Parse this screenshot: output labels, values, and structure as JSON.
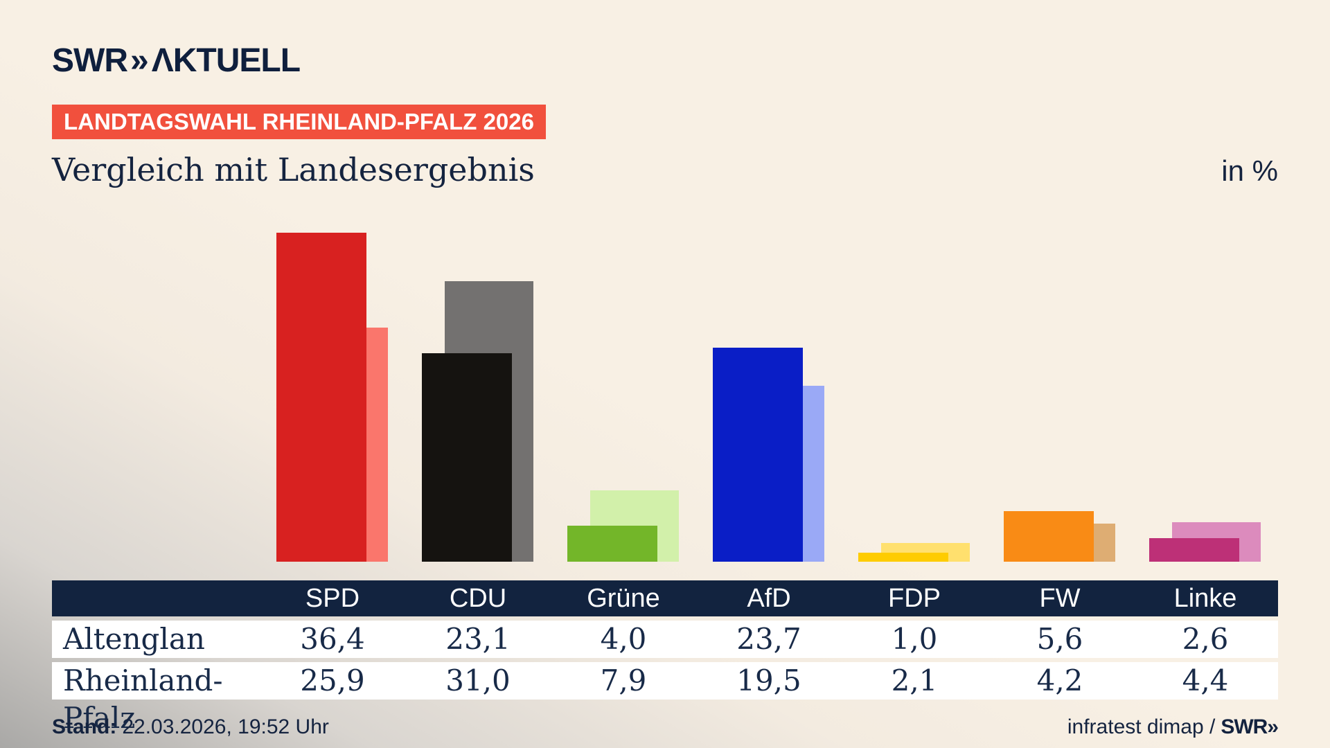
{
  "header": {
    "logo": {
      "swr": "SWR",
      "chevrons": "»",
      "aktuell": "ΛKTUELL"
    },
    "badge": "LANDTAGSWAHL RHEINLAND-PFALZ 2026",
    "title": "Vergleich mit Landesergebnis",
    "unit_label": "in %"
  },
  "chart_data": {
    "type": "bar",
    "categories": [
      "SPD",
      "CDU",
      "Grüne",
      "AfD",
      "FDP",
      "FW",
      "Linke"
    ],
    "series": [
      {
        "name": "Altenglan",
        "values": [
          36.4,
          23.1,
          4.0,
          23.7,
          1.0,
          5.6,
          2.6
        ],
        "colors": [
          "#d82120",
          "#151310",
          "#73b629",
          "#0a1ec6",
          "#fecc00",
          "#f98b15",
          "#bd3077"
        ]
      },
      {
        "name": "Rheinland-Pfalz",
        "values": [
          25.9,
          31.0,
          7.9,
          19.5,
          2.1,
          4.2,
          4.4
        ],
        "colors": [
          "#fa766c",
          "#737170",
          "#d2f0aa",
          "#9aa9f6",
          "#ffe06e",
          "#dead73",
          "#dc8bbd"
        ]
      }
    ],
    "title": "Vergleich mit Landesergebnis",
    "xlabel": "",
    "ylabel": "in %",
    "ylim": [
      0,
      40
    ],
    "grid": false,
    "legend_position": "table-below"
  },
  "table": {
    "columns": [
      "SPD",
      "CDU",
      "Grüne",
      "AfD",
      "FDP",
      "FW",
      "Linke"
    ],
    "rows": [
      {
        "label": "Altenglan",
        "values": [
          "36,4",
          "23,1",
          "4,0",
          "23,7",
          "1,0",
          "5,6",
          "2,6"
        ]
      },
      {
        "label": "Rheinland-Pfalz",
        "values": [
          "25,9",
          "31,0",
          "7,9",
          "19,5",
          "2,1",
          "4,2",
          "4,4"
        ]
      }
    ]
  },
  "footer": {
    "stand_label": "Stand:",
    "stand_value": "22.03.2026, 19:52 Uhr",
    "source": "infratest dimap /",
    "source_brand": "SWR»"
  },
  "colors": {
    "background_cream": "#f8f0e4",
    "background_gray": "#a9a8a6",
    "navy": "#12233f",
    "badge_red": "#f1503d",
    "row_white": "#ffffff"
  }
}
